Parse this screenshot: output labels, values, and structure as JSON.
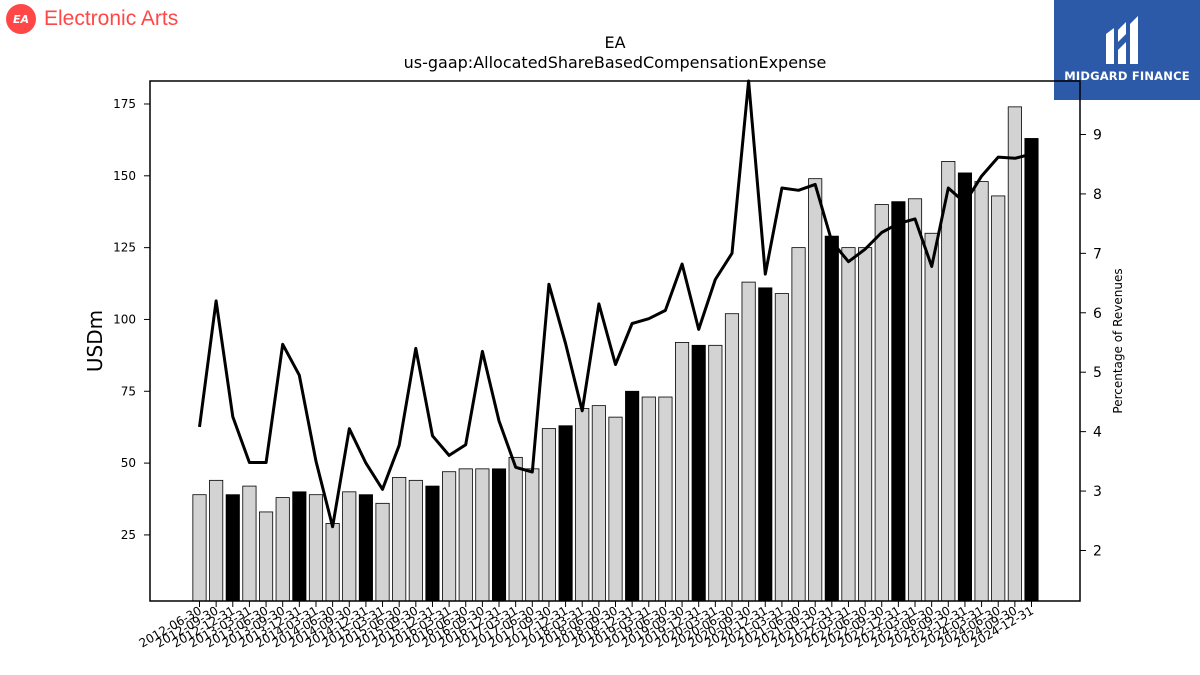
{
  "brand": {
    "company_name": "Electronic Arts",
    "company_badge": "EA",
    "badge_color": "#ff4747",
    "watermark_name": "MIDGARD FINANCE",
    "watermark_color": "#2d5aa8"
  },
  "chart_data": {
    "type": "bar",
    "title": "EA",
    "subtitle": "us-gaap:AllocatedShareBasedCompensationExpense",
    "ylabel": "USDm",
    "ylabel_right": "Percentage of Revenues",
    "xlabel": "",
    "ylim": [
      2,
      183
    ],
    "ylim_right": [
      1.15,
      9.9
    ],
    "yticks": [
      25,
      50,
      75,
      100,
      125,
      150,
      175
    ],
    "yticks_right": [
      2,
      3,
      4,
      5,
      6,
      7,
      8,
      9
    ],
    "grid": false,
    "legend": "none",
    "colors": {
      "bar": "#d3d3d3",
      "bar_q4": "#000000",
      "line": "#000000"
    },
    "categories": [
      "2012-06-30",
      "2012-09-30",
      "2012-12-31",
      "2013-03-31",
      "2013-06-30",
      "2013-09-30",
      "2013-12-31",
      "2014-03-31",
      "2014-06-30",
      "2014-09-30",
      "2014-12-31",
      "2015-03-31",
      "2015-06-30",
      "2015-09-30",
      "2015-12-31",
      "2016-03-31",
      "2016-06-30",
      "2016-09-30",
      "2016-12-31",
      "2017-03-31",
      "2017-06-30",
      "2017-09-30",
      "2017-12-31",
      "2018-03-31",
      "2018-06-30",
      "2018-09-30",
      "2018-12-31",
      "2019-03-31",
      "2019-06-30",
      "2019-09-30",
      "2019-12-31",
      "2020-03-31",
      "2020-06-30",
      "2020-09-30",
      "2020-12-31",
      "2021-03-31",
      "2021-06-30",
      "2021-09-30",
      "2021-12-31",
      "2022-03-31",
      "2022-06-30",
      "2022-09-30",
      "2022-12-31",
      "2023-03-31",
      "2023-06-30",
      "2023-09-30",
      "2023-12-31",
      "2024-03-31",
      "2024-06-30",
      "2024-09-30",
      "2024-12-31"
    ],
    "xtick_labels": [
      "2012-06-30",
      "2012-09-30",
      "2012-12-31",
      "2013-03-31",
      "2013-06-30",
      "2013-09-30",
      "2013-12-31",
      "2014-03-31",
      "2014-06-30",
      "2014-09-30",
      "2014-12-31",
      "2015-03-31",
      "2015-06-30",
      "2015-09-30",
      "2015-12-31",
      "2016-03-31",
      "2016-06-30",
      "2016-09-30",
      "2016-12-31",
      "2017-03-31",
      "2017-06-30",
      "2017-09-30",
      "2017-12-31",
      "2018-03-31",
      "2018-06-30",
      "2018-09-30",
      "2018-12-31",
      "2019-03-31",
      "2019-06-30",
      "2019-09-30",
      "2019-12-31",
      "2020-03-31",
      "2020-06-30",
      "2020-09-30",
      "2020-12-31",
      "2021-03-31",
      "2021-06-30",
      "2021-09-30",
      "2021-12-31",
      "2022-03-31",
      "2022-06-30",
      "2022-09-30",
      "2022-12-31",
      "2023-03-31",
      "2023-06-30",
      "2023-09-30",
      "2023-12-31",
      "2024-03-31",
      "2024-06-30",
      "2024-09-30",
      "2024-12-31"
    ],
    "series": [
      {
        "type": "bar",
        "axis": "left",
        "values": [
          39,
          44,
          39,
          42,
          33,
          38,
          40,
          39,
          29,
          40,
          39,
          36,
          45,
          44,
          42,
          47,
          48,
          48,
          48,
          52,
          48,
          62,
          63,
          69,
          70,
          66,
          75,
          73,
          73,
          92,
          91,
          91,
          102,
          113,
          111,
          109,
          125,
          149,
          129,
          125,
          125,
          140,
          141,
          142,
          130,
          155,
          151,
          148,
          143,
          174,
          163
        ],
        "highlight": [
          false,
          false,
          true,
          false,
          false,
          false,
          true,
          false,
          false,
          false,
          true,
          false,
          false,
          false,
          true,
          false,
          false,
          false,
          true,
          false,
          false,
          false,
          true,
          false,
          false,
          false,
          true,
          false,
          false,
          false,
          true,
          false,
          false,
          false,
          true,
          false,
          false,
          false,
          true,
          false,
          false,
          false,
          true,
          false,
          false,
          false,
          true,
          false,
          false,
          false,
          true
        ]
      },
      {
        "type": "line",
        "axis": "right",
        "values": [
          4.08,
          6.2,
          4.25,
          3.48,
          3.48,
          5.47,
          4.95,
          3.5,
          2.4,
          4.05,
          3.47,
          3.03,
          3.77,
          5.4,
          3.93,
          3.6,
          3.78,
          5.35,
          4.18,
          3.4,
          3.32,
          6.48,
          5.48,
          4.35,
          6.15,
          5.13,
          5.82,
          5.9,
          6.04,
          6.82,
          5.72,
          6.56,
          7.0,
          9.9,
          6.65,
          8.1,
          8.06,
          8.16,
          7.2,
          6.86,
          7.07,
          7.35,
          7.5,
          7.58,
          6.78,
          8.1,
          7.85,
          8.3,
          8.62,
          8.6,
          8.67
        ]
      }
    ]
  }
}
